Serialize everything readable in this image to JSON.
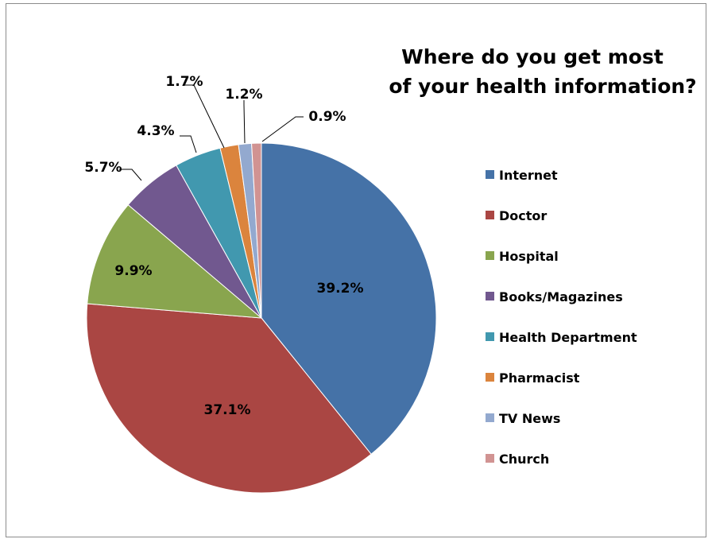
{
  "chart_data": {
    "type": "pie",
    "title": [
      "Where do you get most",
      "of your health information?"
    ],
    "categories": [
      "Internet",
      "Doctor",
      "Hospital",
      "Books/Magazines",
      "Health Department",
      "Pharmacist",
      "TV News",
      "Church"
    ],
    "values": [
      39.2,
      37.1,
      9.9,
      5.7,
      4.3,
      1.7,
      1.2,
      0.9
    ],
    "labels": [
      "39.2%",
      "37.1%",
      "9.9%",
      "5.7%",
      "4.3%",
      "1.7%",
      "1.2%",
      "0.9%"
    ],
    "colors": [
      "#4572A7",
      "#AA4643",
      "#89A54E",
      "#71588F",
      "#4198AF",
      "#DB843D",
      "#93A9CF",
      "#D19392"
    ],
    "legend_position": "right",
    "start_angle": "12 o'clock, clockwise"
  }
}
